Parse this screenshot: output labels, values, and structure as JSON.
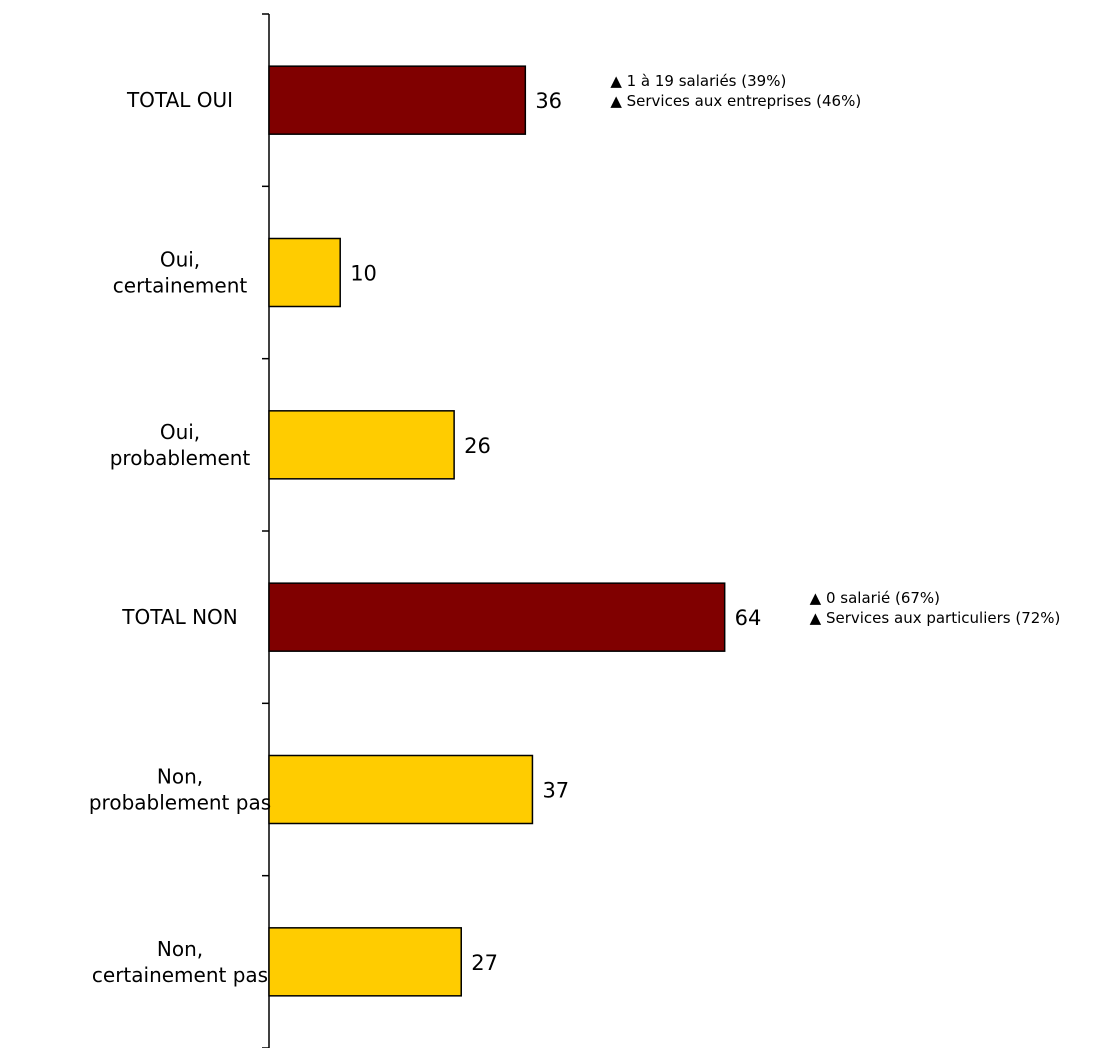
{
  "chart_data": {
    "type": "bar",
    "orientation": "horizontal",
    "categories": [
      [
        "TOTAL OUI"
      ],
      [
        "Oui,",
        "certainement"
      ],
      [
        "Oui,",
        "probablement"
      ],
      [
        "TOTAL NON"
      ],
      [
        "Non,",
        "probablement pas"
      ],
      [
        "Non,",
        "certainement pas"
      ]
    ],
    "values": [
      36,
      10,
      26,
      64,
      37,
      27
    ],
    "value_labels": [
      "36",
      "10",
      "26",
      "64",
      "37",
      "27"
    ],
    "bar_colors": [
      "#800000",
      "#FFCC00",
      "#FFCC00",
      "#800000",
      "#FFCC00",
      "#FFCC00"
    ],
    "xlim": [
      0,
      100
    ],
    "grid": false,
    "annotations": [
      {
        "category_index": 0,
        "lines": [
          "1 à 19 salariés (39%)",
          "Services aux entreprises (46%)"
        ]
      },
      {
        "category_index": 3,
        "lines": [
          "0 salarié (67%)",
          "Services aux particuliers (72%)"
        ]
      }
    ],
    "annotation_marker": "▲"
  }
}
